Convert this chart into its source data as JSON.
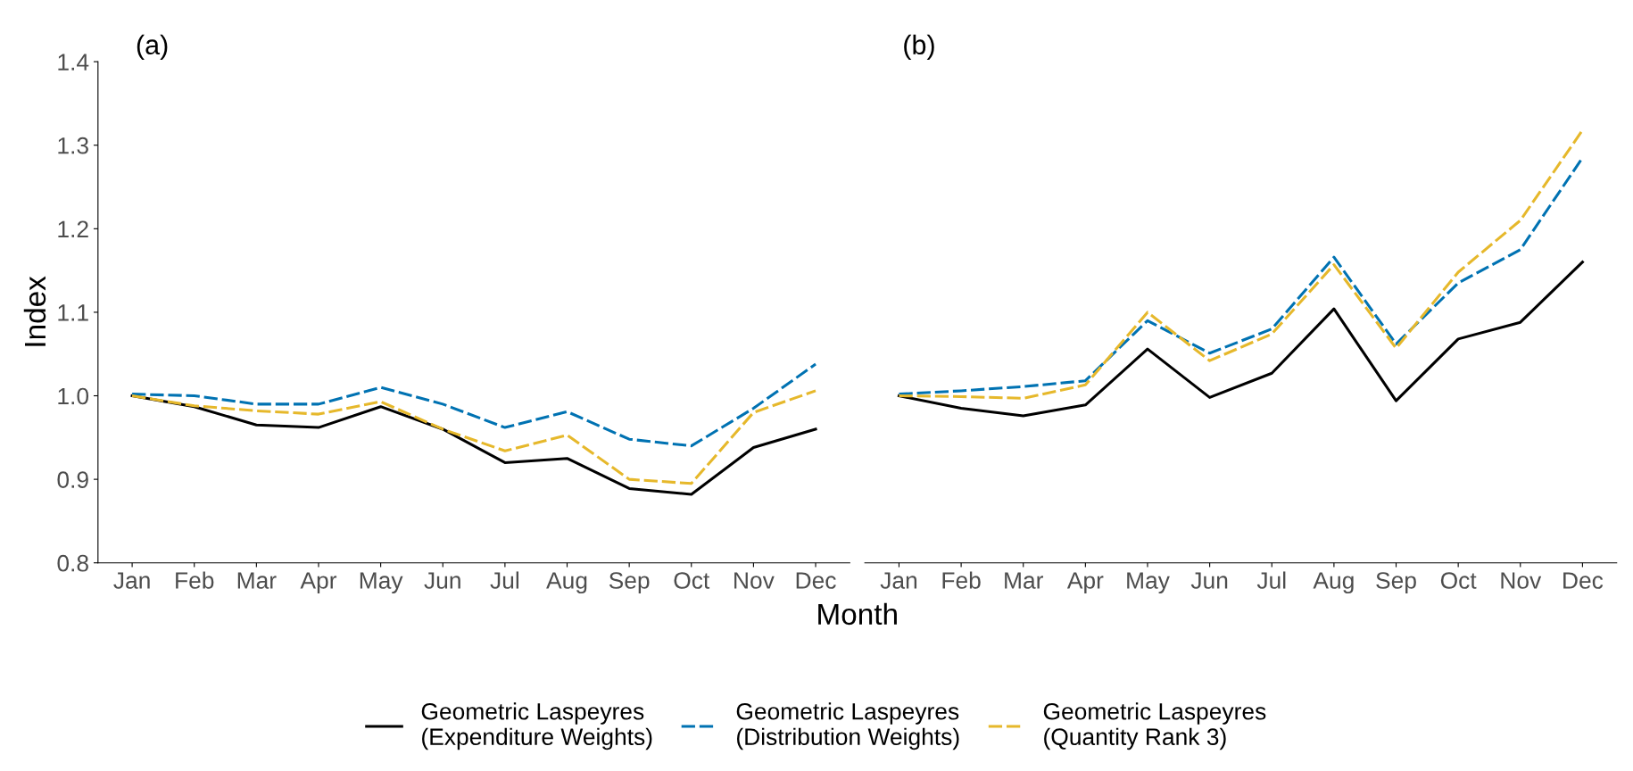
{
  "chart_data": [
    {
      "type": "line",
      "title": "(a)",
      "xlabel": "Month",
      "ylabel": "Index",
      "legend": "bottom",
      "grid": false,
      "categories": [
        "Jan",
        "Feb",
        "Mar",
        "Apr",
        "May",
        "Jun",
        "Jul",
        "Aug",
        "Sep",
        "Oct",
        "Nov",
        "Dec"
      ],
      "ylim": [
        0.8,
        1.4
      ],
      "yticks": [
        {
          "value": 0.8,
          "label": "0.8"
        },
        {
          "value": 0.9,
          "label": "0.9"
        },
        {
          "value": 1.0,
          "label": "1.0"
        },
        {
          "value": 1.1,
          "label": "1.1"
        },
        {
          "value": 1.2,
          "label": "1.2"
        },
        {
          "value": 1.3,
          "label": "1.3"
        },
        {
          "value": 1.4,
          "label": "1.4"
        }
      ],
      "series": [
        {
          "name": "Geometric Laspeyres\n(Expenditure Weights)",
          "color": "#000000",
          "line_style": "solid",
          "values": [
            1.0,
            0.987,
            0.965,
            0.962,
            0.987,
            0.96,
            0.92,
            0.925,
            0.889,
            0.882,
            0.938,
            0.96
          ]
        },
        {
          "name": "Geometric Laspeyres\n(Distribution Weights)",
          "color": "#0072b2",
          "line_style": "dashed",
          "values": [
            1.002,
            1.0,
            0.99,
            0.99,
            1.01,
            0.99,
            0.962,
            0.981,
            0.948,
            0.94,
            0.985,
            1.038
          ]
        },
        {
          "name": "Geometric Laspeyres\n(Quantity Rank 3)",
          "color": "#e6b82b",
          "line_style": "dashed",
          "values": [
            1.0,
            0.988,
            0.982,
            0.978,
            0.993,
            0.96,
            0.934,
            0.953,
            0.9,
            0.895,
            0.98,
            1.006
          ]
        }
      ]
    },
    {
      "type": "line",
      "title": "(b)",
      "tick_labels": "x",
      "grid": false,
      "categories": [
        "Jan",
        "Feb",
        "Mar",
        "Apr",
        "May",
        "Jun",
        "Jul",
        "Aug",
        "Sep",
        "Oct",
        "Nov",
        "Dec"
      ],
      "ylim": [
        0.8,
        1.4
      ],
      "series": [
        {
          "color": "#000000",
          "line_style": "solid",
          "values": [
            1.0,
            0.985,
            0.976,
            0.989,
            1.056,
            0.998,
            1.027,
            1.104,
            0.994,
            1.068,
            1.088,
            1.16
          ]
        },
        {
          "color": "#0072b2",
          "line_style": "dashed",
          "values": [
            1.002,
            1.006,
            1.011,
            1.018,
            1.09,
            1.051,
            1.08,
            1.166,
            1.062,
            1.135,
            1.175,
            1.285
          ]
        },
        {
          "color": "#e6b82b",
          "line_style": "dashed",
          "values": [
            1.0,
            0.999,
            0.997,
            1.013,
            1.1,
            1.042,
            1.074,
            1.157,
            1.057,
            1.148,
            1.21,
            1.318
          ]
        }
      ]
    }
  ]
}
